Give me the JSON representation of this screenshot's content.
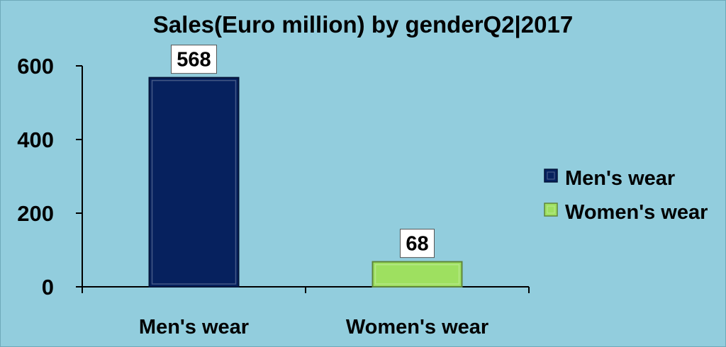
{
  "chart_data": {
    "type": "bar",
    "title": "Sales(Euro million) by genderQ2|2017",
    "categories": [
      "Men's wear",
      "Women's wear"
    ],
    "values": [
      568,
      68
    ],
    "data_labels": [
      "568",
      "68"
    ],
    "ylim": [
      0,
      600
    ],
    "yticks": [
      0,
      200,
      400,
      600
    ],
    "ytick_labels": [
      "0",
      "200",
      "400",
      "600"
    ],
    "colors": [
      "#06215e",
      "#9ee060"
    ],
    "grid": false,
    "legend": {
      "placement": "right",
      "entries": [
        "Men's wear",
        "Women's wear"
      ]
    }
  },
  "styles": {
    "background": "#92cddd",
    "axis_color": "#000000"
  }
}
